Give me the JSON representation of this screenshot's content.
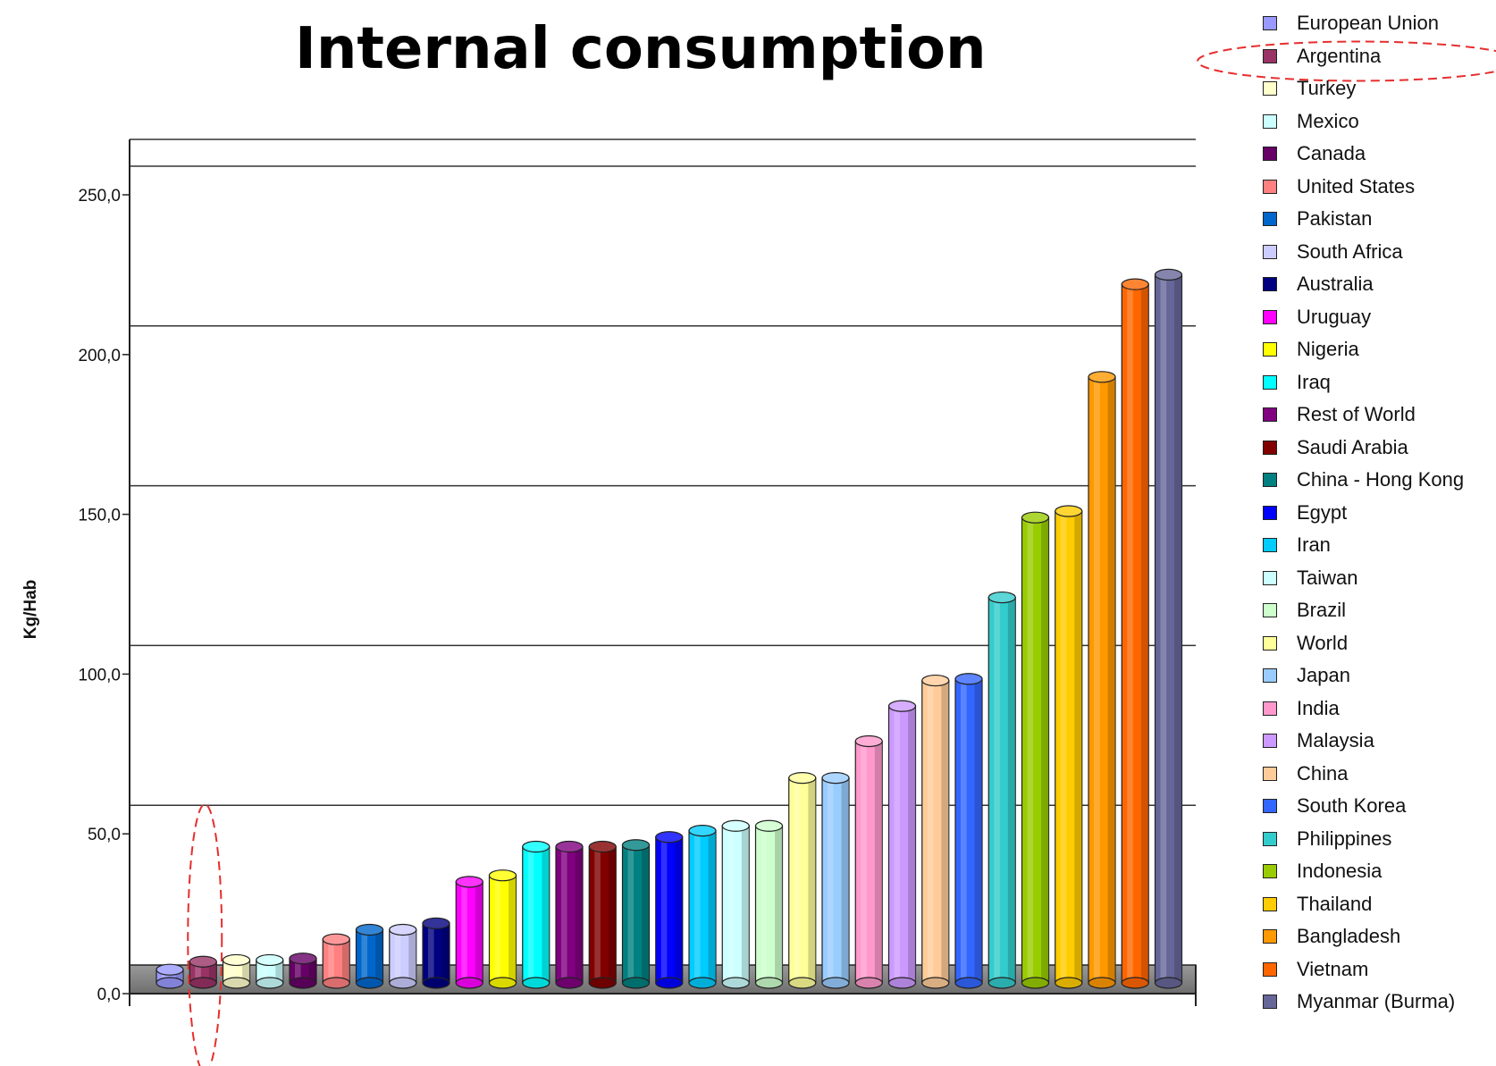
{
  "chart_data": {
    "type": "bar",
    "title": "Internal consumption",
    "xlabel": "",
    "ylabel": "Kg/Hab",
    "ylim": [
      0,
      250
    ],
    "yticks": [
      "0,0",
      "50,0",
      "100,0",
      "150,0",
      "200,0",
      "250,0"
    ],
    "ytick_values": [
      0,
      50,
      100,
      150,
      200,
      250
    ],
    "grid": true,
    "legend_position": "right",
    "categories": [
      "European Union",
      "Argentina",
      "Turkey",
      "Mexico",
      "Canada",
      "United States",
      "Pakistan",
      "South Africa",
      "Australia",
      "Uruguay",
      "Nigeria",
      "Iraq",
      "Rest of World",
      "Saudi Arabia",
      "China - Hong Kong",
      "Egypt",
      "Iran",
      "Taiwan",
      "Brazil",
      "World",
      "Japan",
      "India",
      "Malaysia",
      "China",
      "South Korea",
      "Philippines",
      "Indonesia",
      "Thailand",
      "Bangladesh",
      "Vietnam",
      "Myanmar (Burma)"
    ],
    "values": [
      7.5,
      10,
      10.5,
      10.5,
      11,
      17,
      20,
      20,
      22,
      35,
      37,
      46,
      46,
      46,
      46.5,
      49,
      51,
      52.5,
      52.5,
      67.5,
      67.5,
      79,
      90,
      98,
      98.5,
      124,
      149,
      151,
      193,
      222,
      225
    ],
    "colors": [
      "#9999ff",
      "#993366",
      "#ffffcc",
      "#ccffff",
      "#660066",
      "#ff8080",
      "#0066cc",
      "#ccccff",
      "#000080",
      "#ff00ff",
      "#ffff00",
      "#00ffff",
      "#800080",
      "#800000",
      "#008080",
      "#0000ff",
      "#00ccff",
      "#ccffff",
      "#ccffcc",
      "#ffff99",
      "#99ccff",
      "#ff99cc",
      "#cc99ff",
      "#ffcc99",
      "#3366ff",
      "#33cccc",
      "#99cc00",
      "#ffcc00",
      "#ff9900",
      "#ff6600",
      "#666699"
    ],
    "highlighted": [
      "Argentina"
    ]
  }
}
